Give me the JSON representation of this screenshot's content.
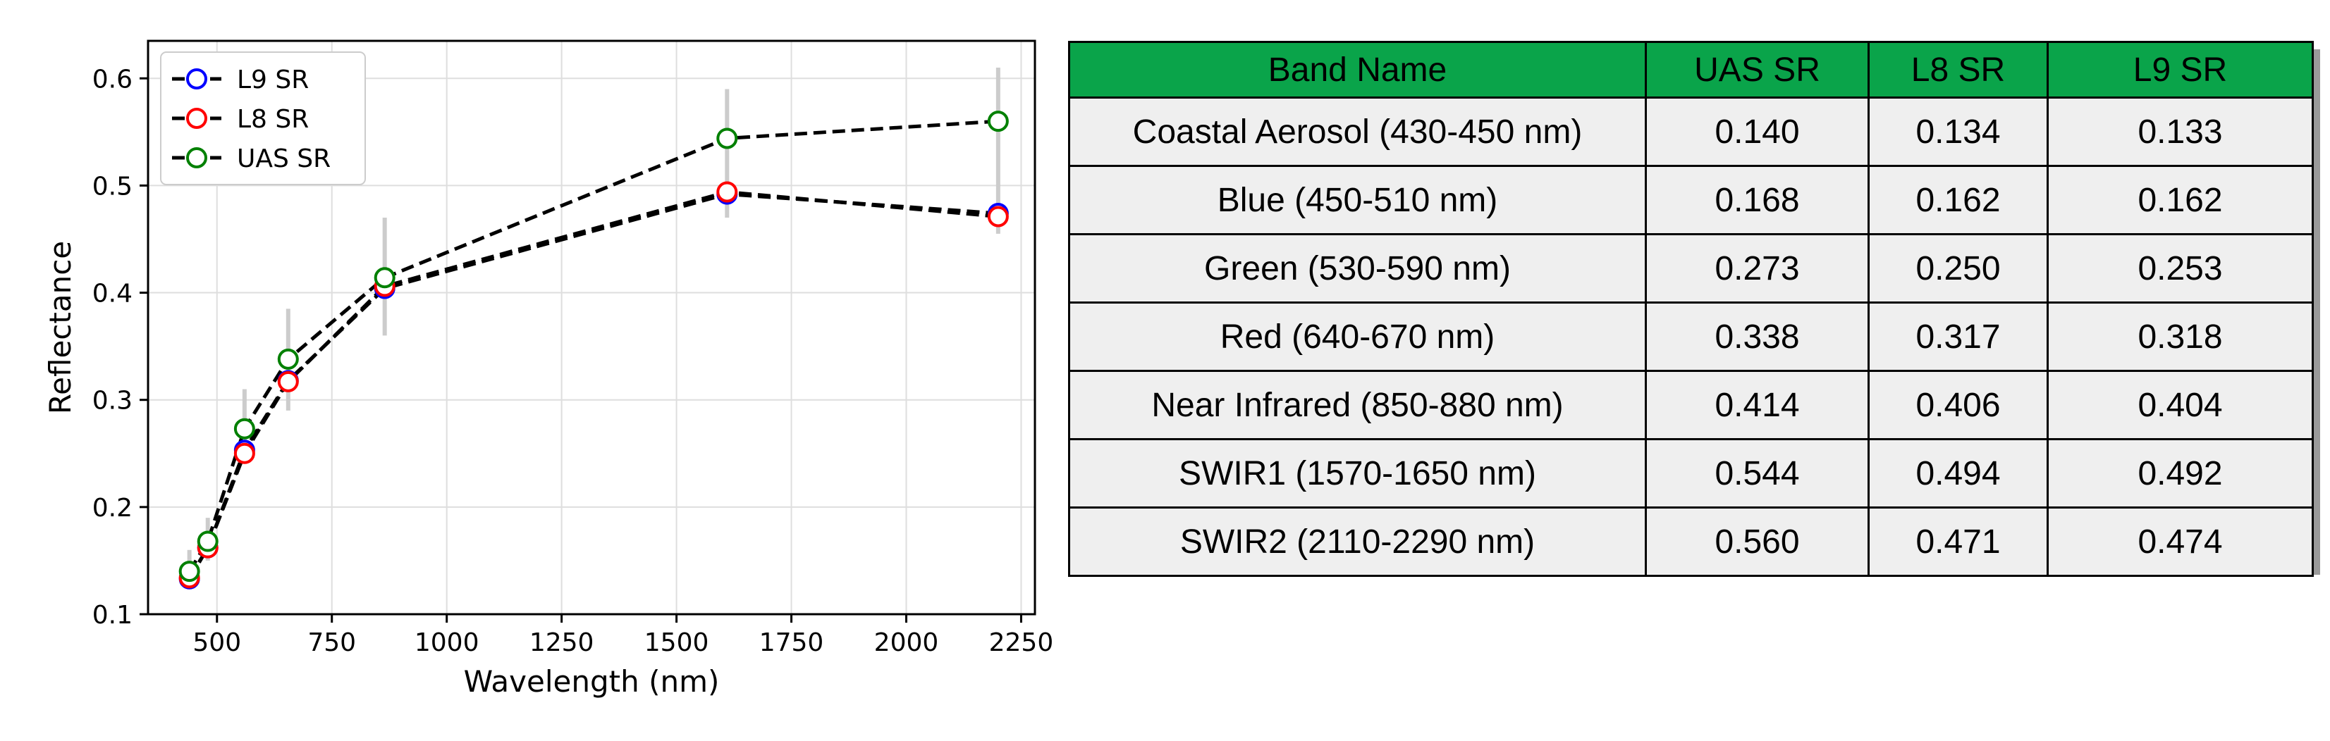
{
  "chart_data": {
    "type": "line",
    "xlabel": "Wavelength (nm)",
    "ylabel": "Reflectance",
    "xlim": [
      350,
      2280
    ],
    "ylim": [
      0.1,
      0.635
    ],
    "xticks": [
      500,
      750,
      1000,
      1250,
      1500,
      1750,
      2000,
      2250
    ],
    "yticks": [
      0.1,
      0.2,
      0.3,
      0.4,
      0.5,
      0.6
    ],
    "grid": true,
    "legend_position": "top-left",
    "x": [
      440,
      480,
      560,
      655,
      865,
      1610,
      2200
    ],
    "series": [
      {
        "name": "L9 SR",
        "color": "#0000ff",
        "values": [
          0.133,
          0.162,
          0.253,
          0.318,
          0.404,
          0.492,
          0.474
        ]
      },
      {
        "name": "L8 SR",
        "color": "#ff0000",
        "values": [
          0.134,
          0.162,
          0.25,
          0.317,
          0.406,
          0.494,
          0.471
        ]
      },
      {
        "name": "UAS SR",
        "color": "#008000",
        "values": [
          0.14,
          0.168,
          0.273,
          0.338,
          0.414,
          0.544,
          0.56
        ]
      }
    ],
    "error_bars": {
      "color": "#cccccc",
      "ranges": [
        [
          0.125,
          0.16
        ],
        [
          0.15,
          0.19
        ],
        [
          0.245,
          0.31
        ],
        [
          0.29,
          0.385
        ],
        [
          0.36,
          0.47
        ],
        [
          0.47,
          0.59
        ],
        [
          0.455,
          0.61
        ]
      ]
    }
  },
  "table": {
    "headers": [
      "Band Name",
      "UAS SR",
      "L8 SR",
      "L9 SR"
    ],
    "rows": [
      [
        "Coastal Aerosol (430-450 nm)",
        "0.140",
        "0.134",
        "0.133"
      ],
      [
        "Blue (450-510 nm)",
        "0.168",
        "0.162",
        "0.162"
      ],
      [
        "Green (530-590 nm)",
        "0.273",
        "0.250",
        "0.253"
      ],
      [
        "Red (640-670 nm)",
        "0.338",
        "0.317",
        "0.318"
      ],
      [
        "Near Infrared (850-880 nm)",
        "0.414",
        "0.406",
        "0.404"
      ],
      [
        "SWIR1 (1570-1650 nm)",
        "0.544",
        "0.494",
        "0.492"
      ],
      [
        "SWIR2 (2110-2290 nm)",
        "0.560",
        "0.471",
        "0.474"
      ]
    ],
    "header_color": "#0aa44a",
    "cell_color": "#efefef"
  }
}
